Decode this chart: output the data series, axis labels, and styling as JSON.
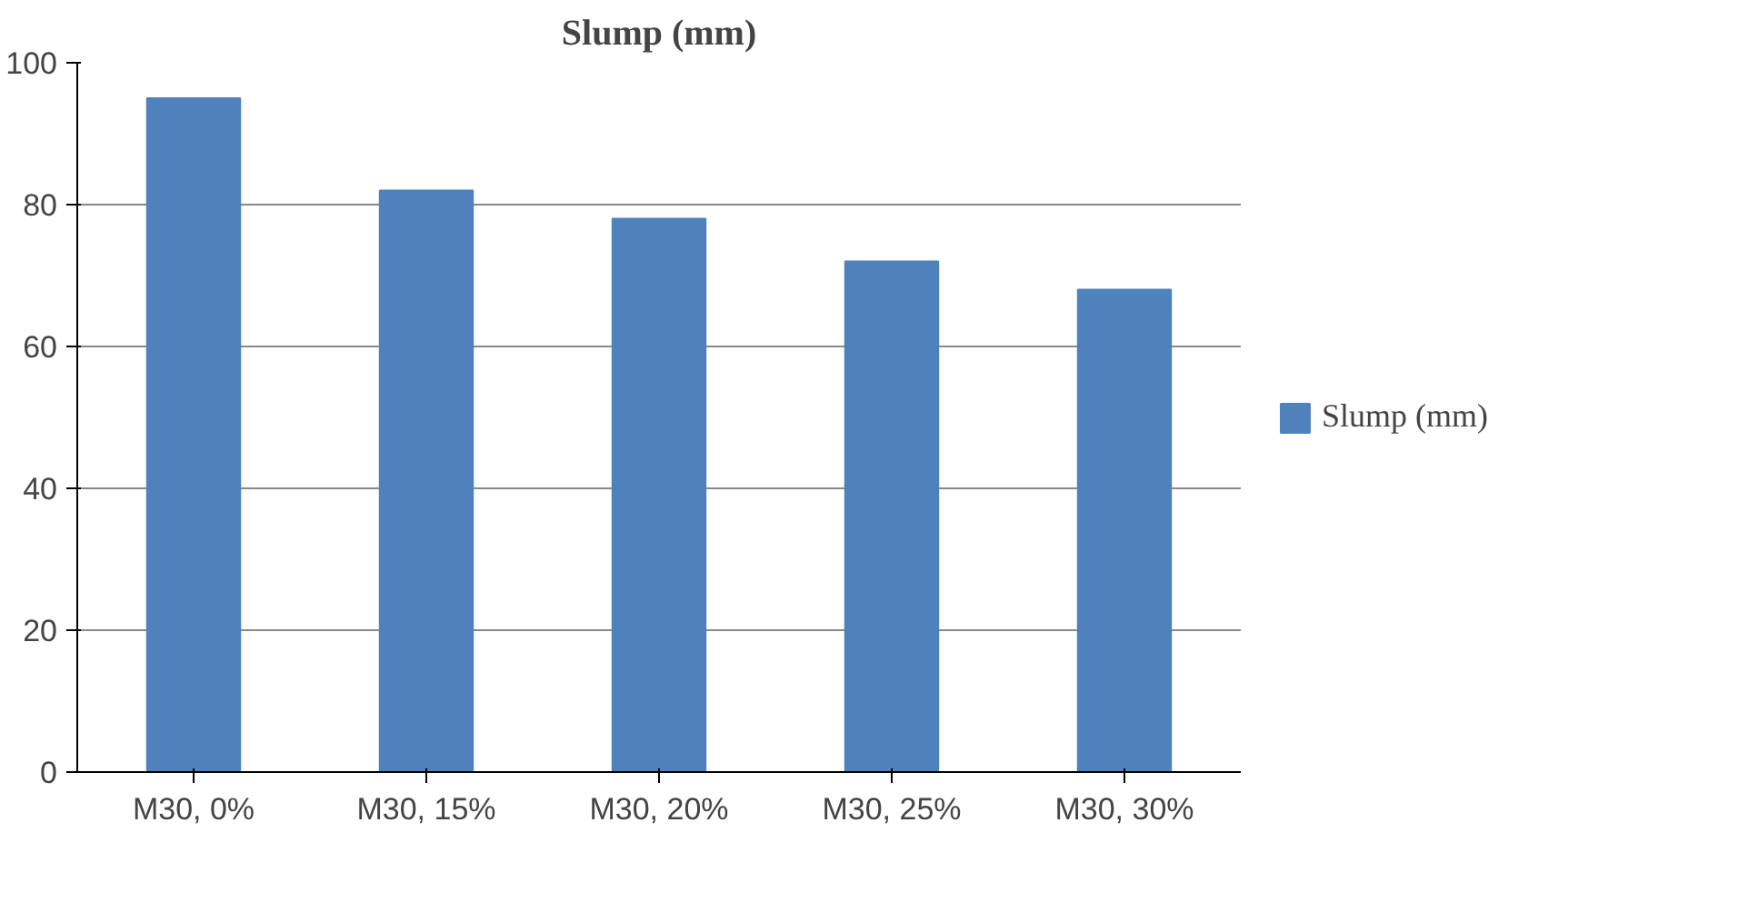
{
  "chart_data": {
    "type": "bar",
    "title": "Slump (mm)",
    "categories": [
      "M30, 0%",
      "M30, 15%",
      "M30, 20%",
      "M30, 25%",
      "M30, 30%"
    ],
    "series": [
      {
        "name": "Slump (mm)",
        "color": "#4f81bd",
        "values": [
          95,
          82,
          78,
          72,
          68
        ]
      }
    ],
    "ylim": [
      0,
      100
    ],
    "yticks": [
      0,
      20,
      40,
      60,
      80,
      100
    ],
    "grid": "y",
    "legend": "right"
  }
}
